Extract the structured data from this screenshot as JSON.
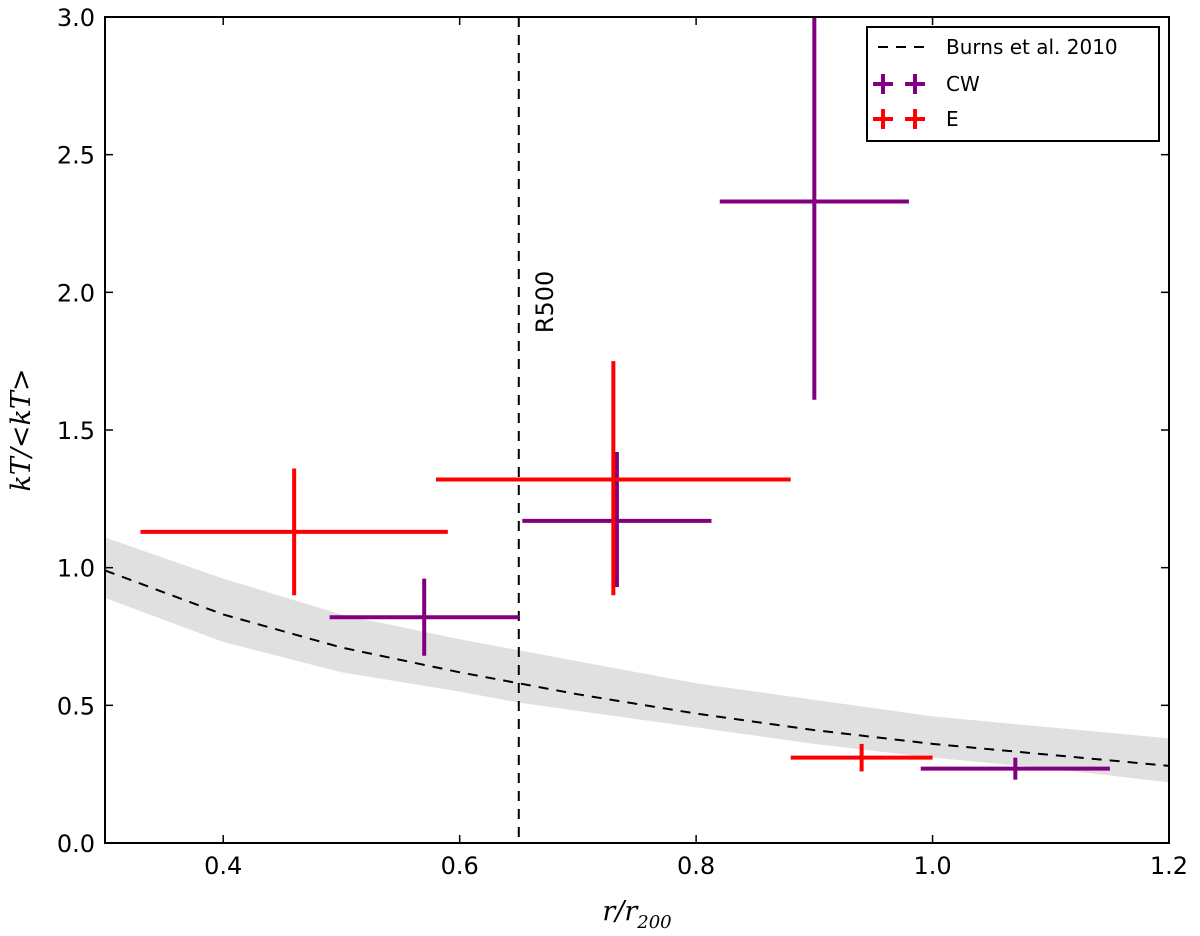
{
  "chart_data": {
    "type": "scatter",
    "title": "",
    "xlabel_main": "r/r",
    "xlabel_sub": "200",
    "ylabel": "kT/<kT>",
    "xlim": [
      0.3,
      1.2
    ],
    "ylim": [
      0.0,
      3.0
    ],
    "xticks": [
      0.4,
      0.6,
      0.8,
      1.0,
      1.2
    ],
    "xtick_labels": [
      "0.4",
      "0.6",
      "0.8",
      "1.0",
      "1.2"
    ],
    "yticks": [
      0.0,
      0.5,
      1.0,
      1.5,
      2.0,
      2.5,
      3.0
    ],
    "ytick_labels": [
      "0.0",
      "0.5",
      "1.0",
      "1.5",
      "2.0",
      "2.5",
      "3.0"
    ],
    "grid": false,
    "legend_position": "top-right",
    "reference_line": {
      "x": 0.65,
      "label": "R500",
      "color": "#000000"
    },
    "model": {
      "name": "Burns et al. 2010",
      "color": "#000000",
      "band_color": "#e0e0e0",
      "x": [
        0.3,
        0.4,
        0.5,
        0.6,
        0.65,
        0.7,
        0.8,
        0.9,
        1.0,
        1.1,
        1.2
      ],
      "y": [
        0.99,
        0.83,
        0.71,
        0.62,
        0.58,
        0.54,
        0.47,
        0.41,
        0.36,
        0.32,
        0.28
      ],
      "y_low": [
        0.89,
        0.73,
        0.62,
        0.55,
        0.51,
        0.48,
        0.42,
        0.36,
        0.31,
        0.27,
        0.22
      ],
      "y_high": [
        1.11,
        0.96,
        0.83,
        0.74,
        0.7,
        0.66,
        0.58,
        0.52,
        0.46,
        0.42,
        0.38
      ]
    },
    "series": [
      {
        "name": "CW",
        "color": "#800080",
        "points": [
          {
            "x": 0.57,
            "xlo": 0.49,
            "xhi": 0.65,
            "y": 0.82,
            "ylo": 0.68,
            "yhi": 0.96
          },
          {
            "x": 0.733,
            "xlo": 0.653,
            "xhi": 0.813,
            "y": 1.17,
            "ylo": 0.93,
            "yhi": 1.42
          },
          {
            "x": 0.9,
            "xlo": 0.82,
            "xhi": 0.98,
            "y": 2.33,
            "ylo": 1.61,
            "yhi": 3.0
          },
          {
            "x": 1.07,
            "xlo": 0.99,
            "xhi": 1.15,
            "y": 0.27,
            "ylo": 0.23,
            "yhi": 0.31
          }
        ]
      },
      {
        "name": "E",
        "color": "#ff0000",
        "points": [
          {
            "x": 0.46,
            "xlo": 0.33,
            "xhi": 0.59,
            "y": 1.13,
            "ylo": 0.9,
            "yhi": 1.36
          },
          {
            "x": 0.73,
            "xlo": 0.58,
            "xhi": 0.88,
            "y": 1.32,
            "ylo": 0.9,
            "yhi": 1.75
          },
          {
            "x": 0.94,
            "xlo": 0.88,
            "xhi": 1.0,
            "y": 0.31,
            "ylo": 0.26,
            "yhi": 0.36
          }
        ]
      }
    ]
  }
}
